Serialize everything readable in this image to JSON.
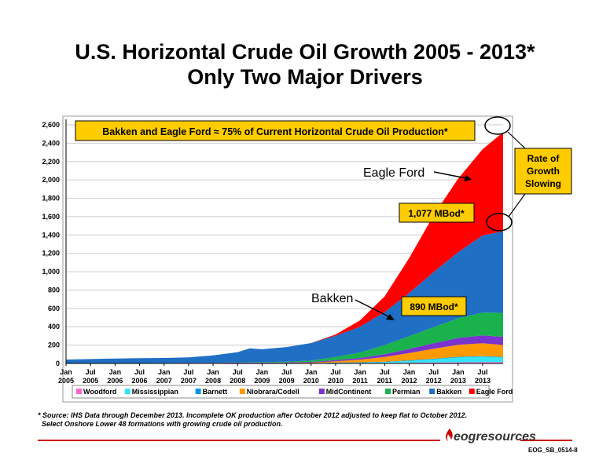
{
  "title_line1": "U.S. Horizontal Crude Oil Growth 2005 - 2013*",
  "title_line2": "Only Two Major Drivers",
  "footnote_line1": "* Source: IHS Data through December 2013. Incomplete OK production after October 2012 adjusted to keep flat to October 2012.",
  "footnote_line2": "Select Onshore Lower 48 formations with growing crude oil production.",
  "logo_text": "eogresources",
  "slide_id": "EOG_SB_0514-8",
  "colors": {
    "Woodford": "#ff66cc",
    "Mississippian": "#33e5ff",
    "Barnett": "#0099e6",
    "Niobrara/Codell": "#ff9900",
    "MidContinent": "#7a33cc",
    "Permian": "#1ab24d",
    "Bakken": "#1f6fc5",
    "Eagle Ford": "#ff0000",
    "callout_fill": "#ffcc00",
    "brand_red": "#cc0000"
  },
  "chart_data": {
    "type": "area",
    "stacked": true,
    "ylim": [
      0,
      2600
    ],
    "yticks": [
      "0",
      "200",
      "400",
      "600",
      "800",
      "1,000",
      "1,200",
      "1,400",
      "1,600",
      "1,800",
      "2,000",
      "2,200",
      "2,400",
      "2,600"
    ],
    "xticks": [
      [
        "Jan",
        "2005"
      ],
      [
        "Jul",
        "2005"
      ],
      [
        "Jan",
        "2006"
      ],
      [
        "Jul",
        "2006"
      ],
      [
        "Jan",
        "2007"
      ],
      [
        "Jul",
        "2007"
      ],
      [
        "Jan",
        "2008"
      ],
      [
        "Jul",
        "2008"
      ],
      [
        "Jan",
        "2009"
      ],
      [
        "Jul",
        "2009"
      ],
      [
        "Jan",
        "2010"
      ],
      [
        "Jul",
        "2010"
      ],
      [
        "Jan",
        "2011"
      ],
      [
        "Jul",
        "2011"
      ],
      [
        "Jan",
        "2012"
      ],
      [
        "Jul",
        "2012"
      ],
      [
        "Jan",
        "2013"
      ],
      [
        "Jul",
        "2013"
      ]
    ],
    "x": [
      "2005-01",
      "2005-07",
      "2006-01",
      "2006-07",
      "2007-01",
      "2007-07",
      "2008-01",
      "2008-07",
      "2008-10",
      "2009-01",
      "2009-07",
      "2010-01",
      "2010-07",
      "2011-01",
      "2011-07",
      "2012-01",
      "2012-07",
      "2013-01",
      "2013-07",
      "2013-12"
    ],
    "series": [
      {
        "name": "Woodford",
        "values": [
          0,
          0,
          0,
          0,
          0,
          0,
          0,
          0,
          0,
          0,
          0,
          0,
          2,
          3,
          5,
          8,
          10,
          12,
          14,
          15
        ]
      },
      {
        "name": "Mississippian",
        "values": [
          0,
          0,
          0,
          0,
          0,
          0,
          0,
          0,
          0,
          0,
          0,
          1,
          3,
          5,
          10,
          20,
          35,
          55,
          60,
          50
        ]
      },
      {
        "name": "Barnett",
        "values": [
          1,
          1,
          1,
          1,
          2,
          2,
          2,
          3,
          3,
          3,
          3,
          3,
          4,
          4,
          5,
          5,
          6,
          6,
          6,
          6
        ]
      },
      {
        "name": "Niobrara/Codell",
        "values": [
          0,
          0,
          0,
          0,
          0,
          0,
          0,
          1,
          1,
          1,
          2,
          5,
          15,
          30,
          50,
          80,
          110,
          130,
          140,
          130
        ]
      },
      {
        "name": "MidContinent",
        "values": [
          2,
          2,
          3,
          3,
          3,
          4,
          4,
          5,
          5,
          5,
          6,
          8,
          12,
          18,
          30,
          45,
          60,
          75,
          85,
          90
        ]
      },
      {
        "name": "Permian",
        "values": [
          0,
          0,
          0,
          0,
          0,
          1,
          2,
          4,
          5,
          6,
          8,
          15,
          35,
          60,
          100,
          140,
          175,
          215,
          250,
          260
        ]
      },
      {
        "name": "Bakken",
        "values": [
          40,
          45,
          50,
          53,
          55,
          60,
          80,
          110,
          150,
          140,
          160,
          190,
          230,
          280,
          360,
          470,
          600,
          720,
          840,
          890
        ]
      },
      {
        "name": "Eagle Ford",
        "values": [
          0,
          0,
          0,
          0,
          0,
          0,
          0,
          0,
          0,
          0,
          0,
          0,
          15,
          70,
          170,
          380,
          620,
          800,
          940,
          1077
        ]
      }
    ],
    "legend": [
      "Woodford",
      "Mississippian",
      "Barnett",
      "Niobrara/Codell",
      "MidContinent",
      "Permian",
      "Bakken",
      "Eagle Ford"
    ],
    "legend_placement": "bottom",
    "annotations": {
      "headline": "Bakken and Eagle Ford ≈ 75% of Current Horizontal Crude Oil Production*",
      "eagle_ford_label": "Eagle Ford",
      "bakken_label": "Bakken",
      "eagle_ford_value": "1,077 MBod*",
      "bakken_value": "890 MBod*",
      "rate_of_growth": [
        "Rate of",
        "Growth",
        "Slowing"
      ]
    }
  }
}
